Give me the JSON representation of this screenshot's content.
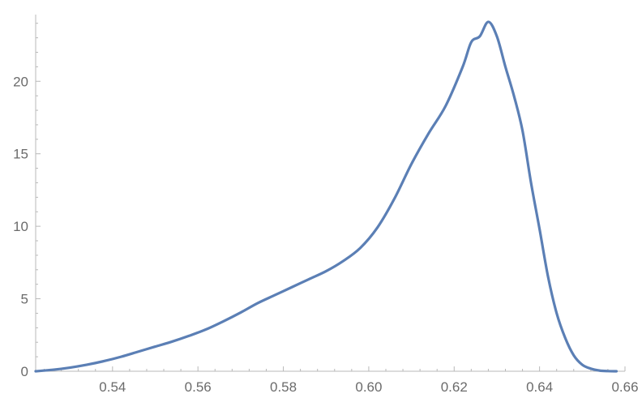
{
  "chart_data": {
    "type": "line",
    "title": "",
    "xlabel": "",
    "ylabel": "",
    "xlim": [
      0.522,
      0.66
    ],
    "ylim": [
      0,
      24.6
    ],
    "x_ticks": [
      0.54,
      0.56,
      0.58,
      0.6,
      0.62,
      0.64,
      0.66
    ],
    "x_tick_labels": [
      "0.54",
      "0.56",
      "0.58",
      "0.60",
      "0.62",
      "0.64",
      "0.66"
    ],
    "y_ticks": [
      0,
      5,
      10,
      15,
      20
    ],
    "y_tick_labels": [
      "0",
      "5",
      "10",
      "15",
      "20"
    ],
    "grid": false,
    "series": [
      {
        "color": "#5b7fb5",
        "x": [
          0.522,
          0.526,
          0.53,
          0.534,
          0.538,
          0.542,
          0.546,
          0.55,
          0.554,
          0.558,
          0.562,
          0.566,
          0.57,
          0.574,
          0.578,
          0.582,
          0.586,
          0.59,
          0.594,
          0.598,
          0.602,
          0.606,
          0.61,
          0.614,
          0.618,
          0.622,
          0.624,
          0.626,
          0.628,
          0.63,
          0.632,
          0.634,
          0.636,
          0.638,
          0.64,
          0.642,
          0.644,
          0.646,
          0.648,
          0.65,
          0.652,
          0.654,
          0.656,
          0.658
        ],
        "y": [
          0.0,
          0.1,
          0.25,
          0.45,
          0.7,
          1.0,
          1.35,
          1.7,
          2.05,
          2.45,
          2.9,
          3.45,
          4.05,
          4.7,
          5.25,
          5.8,
          6.35,
          6.9,
          7.6,
          8.5,
          9.9,
          11.9,
          14.3,
          16.4,
          18.3,
          21.0,
          22.7,
          23.1,
          24.1,
          23.1,
          21.0,
          19.0,
          16.6,
          13.0,
          9.8,
          6.5,
          4.0,
          2.3,
          1.1,
          0.45,
          0.18,
          0.05,
          0.01,
          0.0
        ]
      }
    ]
  }
}
